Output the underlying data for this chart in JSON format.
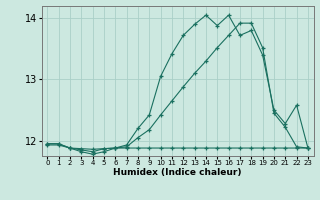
{
  "xlabel": "Humidex (Indice chaleur)",
  "xlim": [
    -0.5,
    23.5
  ],
  "ylim": [
    11.75,
    14.2
  ],
  "yticks": [
    12,
    13,
    14
  ],
  "xtick_labels": [
    "0",
    "1",
    "2",
    "3",
    "4",
    "5",
    "6",
    "7",
    "8",
    "9",
    "10",
    "11",
    "12",
    "13",
    "14",
    "15",
    "16",
    "17",
    "18",
    "19",
    "20",
    "21",
    "22",
    "23"
  ],
  "bg_color": "#cce8e0",
  "grid_color": "#aacfc8",
  "line_color": "#1a7060",
  "line1_x": [
    0,
    1,
    2,
    3,
    4,
    5,
    6,
    7,
    8,
    9,
    10,
    11,
    12,
    13,
    14,
    15,
    16,
    17,
    18,
    19,
    20,
    21,
    22,
    23
  ],
  "line1_y": [
    11.93,
    11.93,
    11.88,
    11.87,
    11.86,
    11.87,
    11.88,
    11.88,
    11.88,
    11.88,
    11.88,
    11.88,
    11.88,
    11.88,
    11.88,
    11.88,
    11.88,
    11.88,
    11.88,
    11.88,
    11.88,
    11.88,
    11.88,
    11.88
  ],
  "line2_x": [
    0,
    1,
    2,
    3,
    4,
    5,
    6,
    7,
    8,
    9,
    10,
    11,
    12,
    13,
    14,
    15,
    16,
    17,
    18,
    19,
    20,
    21,
    22,
    23
  ],
  "line2_y": [
    11.95,
    11.95,
    11.88,
    11.85,
    11.82,
    11.87,
    11.88,
    11.9,
    12.05,
    12.18,
    12.42,
    12.65,
    12.88,
    13.1,
    13.3,
    13.52,
    13.72,
    13.92,
    13.92,
    13.52,
    12.45,
    12.22,
    11.9,
    11.88
  ],
  "line3_x": [
    0,
    1,
    2,
    3,
    4,
    5,
    6,
    7,
    8,
    9,
    10,
    11,
    12,
    13,
    14,
    15,
    16,
    17,
    18,
    19,
    20,
    21,
    22,
    23
  ],
  "line3_y": [
    11.95,
    11.95,
    11.88,
    11.82,
    11.78,
    11.82,
    11.88,
    11.93,
    12.2,
    12.42,
    13.05,
    13.42,
    13.72,
    13.9,
    14.05,
    13.88,
    14.05,
    13.72,
    13.8,
    13.4,
    12.5,
    12.28,
    12.58,
    11.88
  ]
}
